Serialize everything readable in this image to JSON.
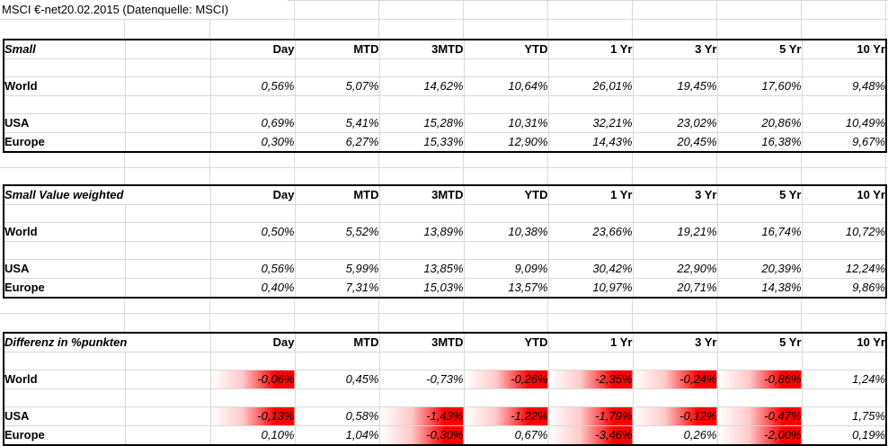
{
  "sheet_title": "MSCI €-net20.02.2015 (Datenquelle: MSCI)",
  "column_headers": [
    "Day",
    "MTD",
    "3MTD",
    "YTD",
    "1 Yr",
    "3 Yr",
    "5 Yr",
    "10 Yr"
  ],
  "colors": {
    "highlight_red": "#ff0000",
    "gridline": "#d9d9d9",
    "table_border": "#000000",
    "text": "#000000"
  },
  "tables": [
    {
      "name": "Small",
      "rows": [
        {
          "label": "World",
          "values": [
            "0,56%",
            "5,07%",
            "14,62%",
            "10,64%",
            "26,01%",
            "19,45%",
            "17,60%",
            "9,48%"
          ],
          "highlighted": [
            false,
            false,
            false,
            false,
            false,
            false,
            false,
            false
          ]
        },
        {
          "label": "USA",
          "values": [
            "0,69%",
            "5,41%",
            "15,28%",
            "10,31%",
            "32,21%",
            "23,02%",
            "20,86%",
            "10,49%"
          ],
          "highlighted": [
            false,
            false,
            false,
            false,
            false,
            false,
            false,
            false
          ]
        },
        {
          "label": "Europe",
          "values": [
            "0,30%",
            "6,27%",
            "15,33%",
            "12,90%",
            "14,43%",
            "20,45%",
            "16,38%",
            "9,67%"
          ],
          "highlighted": [
            false,
            false,
            false,
            false,
            false,
            false,
            false,
            false
          ]
        }
      ]
    },
    {
      "name": "Small Value weighted",
      "rows": [
        {
          "label": "World",
          "values": [
            "0,50%",
            "5,52%",
            "13,89%",
            "10,38%",
            "23,66%",
            "19,21%",
            "16,74%",
            "10,72%"
          ],
          "highlighted": [
            false,
            false,
            false,
            false,
            false,
            false,
            false,
            false
          ]
        },
        {
          "label": "USA",
          "values": [
            "0,56%",
            "5,99%",
            "13,85%",
            "9,09%",
            "30,42%",
            "22,90%",
            "20,39%",
            "12,24%"
          ],
          "highlighted": [
            false,
            false,
            false,
            false,
            false,
            false,
            false,
            false
          ]
        },
        {
          "label": "Europe",
          "values": [
            "0,40%",
            "7,31%",
            "15,03%",
            "13,57%",
            "10,97%",
            "20,71%",
            "14,38%",
            "9,86%"
          ],
          "highlighted": [
            false,
            false,
            false,
            false,
            false,
            false,
            false,
            false
          ]
        }
      ]
    },
    {
      "name": "Differenz in %punkten",
      "rows": [
        {
          "label": "World",
          "values": [
            "-0,06%",
            "0,45%",
            "-0,73%",
            "-0,26%",
            "-2,35%",
            "-0,24%",
            "-0,86%",
            "1,24%"
          ],
          "highlighted": [
            true,
            false,
            false,
            true,
            true,
            true,
            true,
            false
          ]
        },
        {
          "label": "USA",
          "values": [
            "-0,13%",
            "0,58%",
            "-1,43%",
            "-1,22%",
            "-1,79%",
            "-0,12%",
            "-0,47%",
            "1,75%"
          ],
          "highlighted": [
            true,
            false,
            true,
            true,
            true,
            true,
            true,
            false
          ]
        },
        {
          "label": "Europe",
          "values": [
            "0,10%",
            "1,04%",
            "-0,30%",
            "0,67%",
            "-3,46%",
            "0,26%",
            "-2,00%",
            "0,19%"
          ],
          "highlighted": [
            false,
            false,
            true,
            false,
            true,
            false,
            true,
            false
          ]
        }
      ]
    }
  ]
}
